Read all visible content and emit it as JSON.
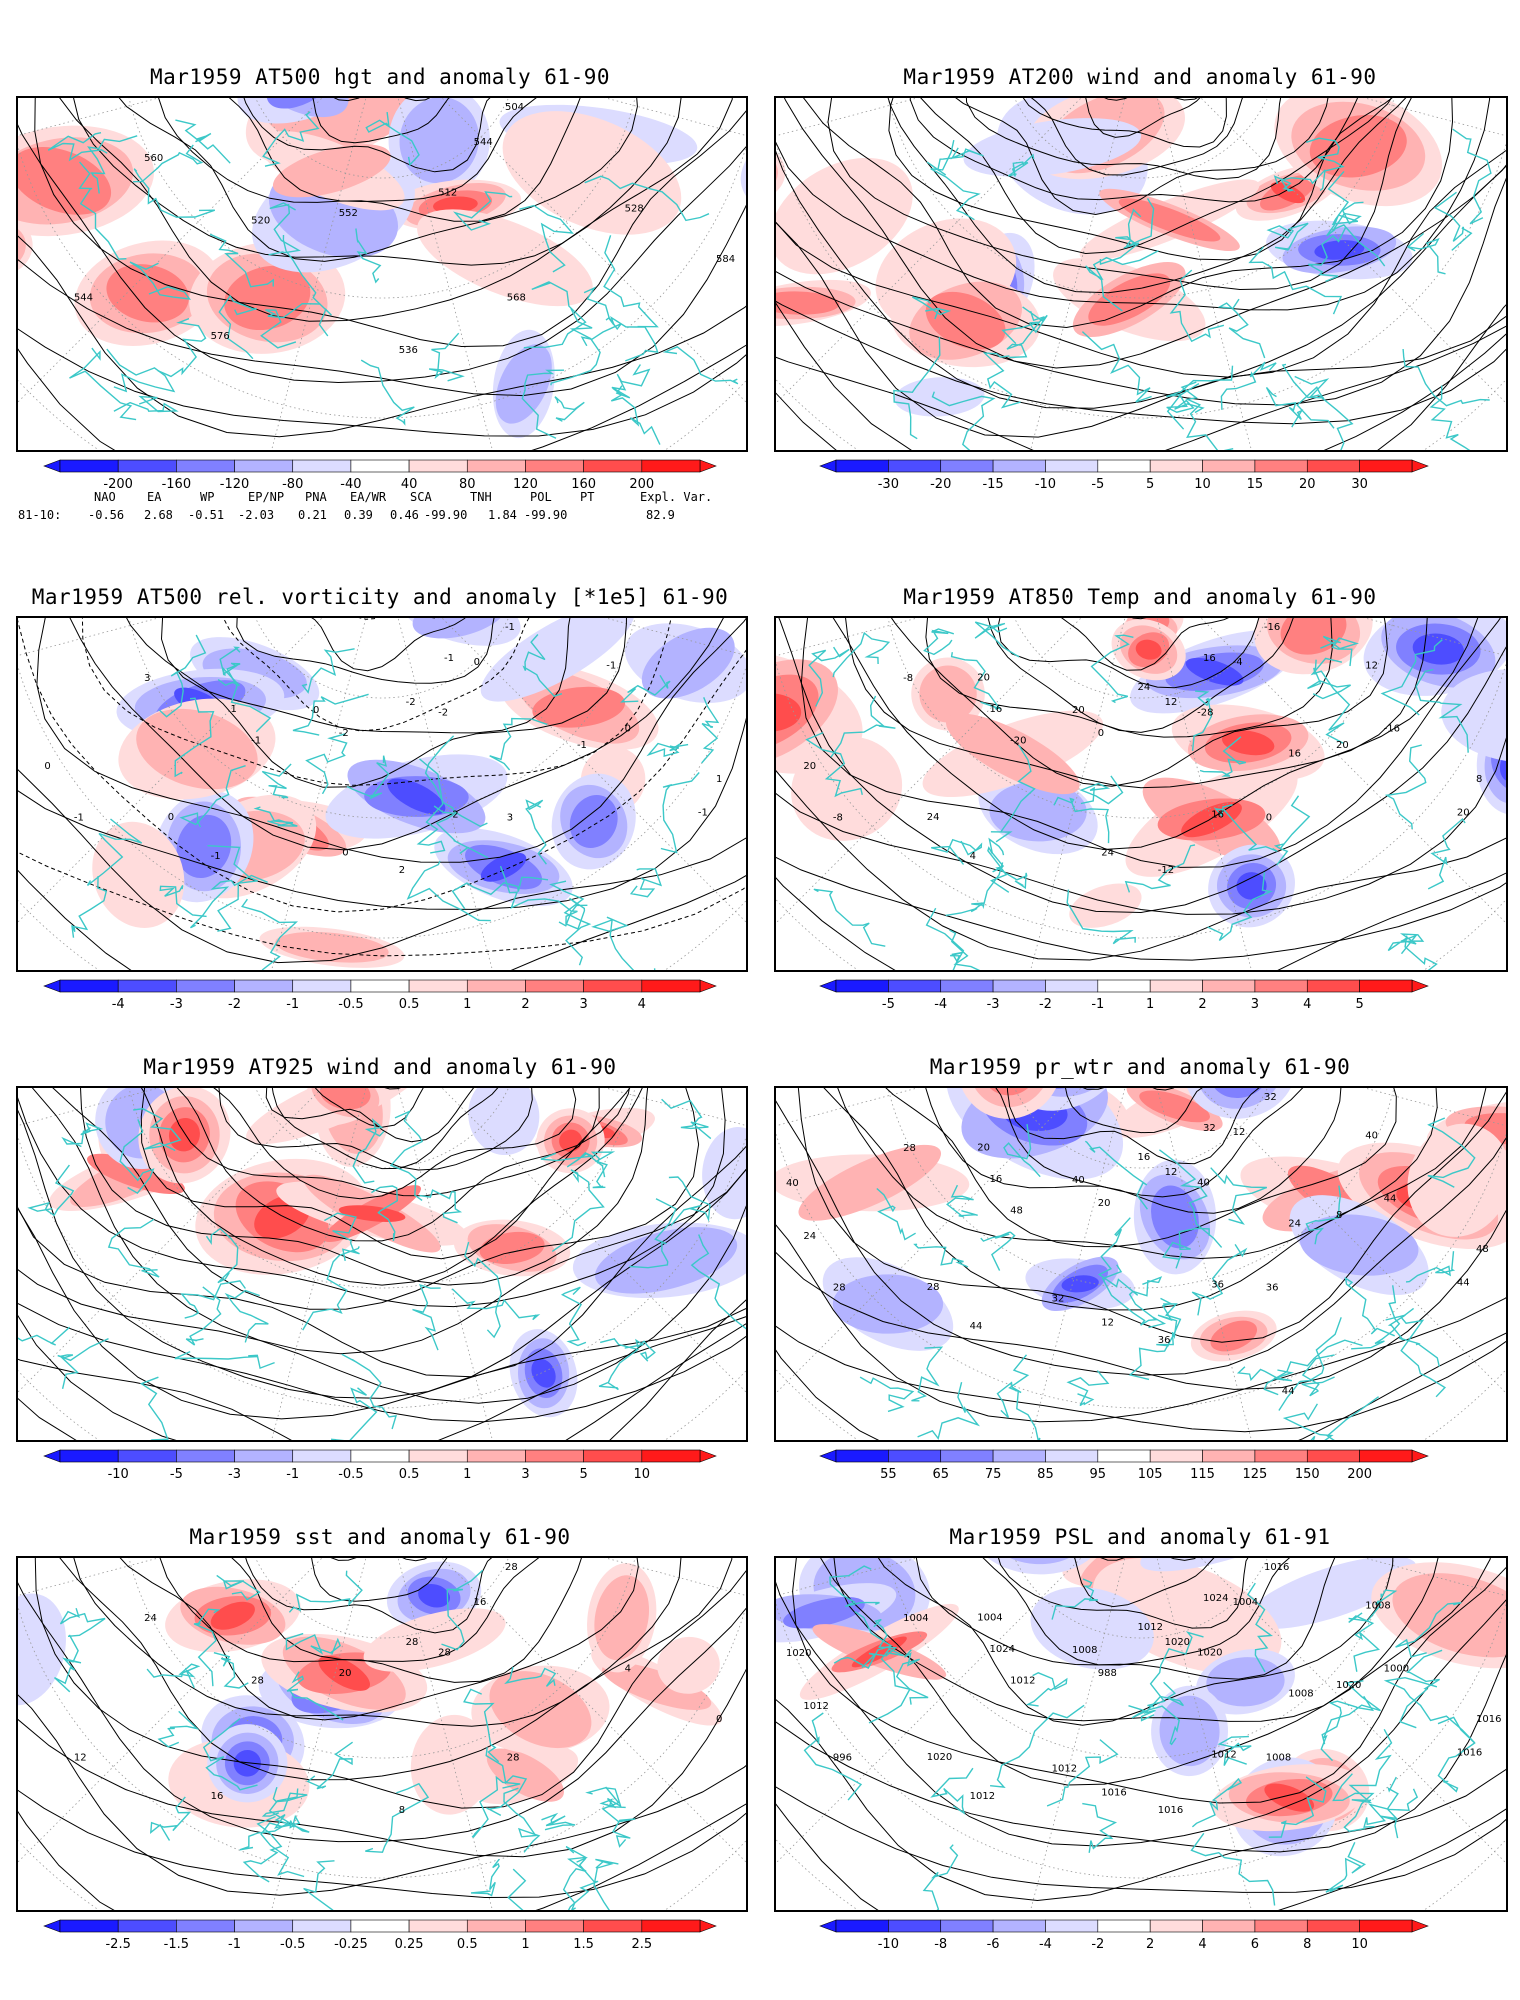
{
  "panels": [
    {
      "title": "Mar1959 AT500 hgt and anomaly 61-90",
      "colorbar": [
        "-200",
        "-160",
        "-120",
        "-80",
        "-40",
        "40",
        "80",
        "120",
        "160",
        "200"
      ],
      "contour_labels": [
        "504",
        "512",
        "520",
        "528",
        "536",
        "544",
        "544",
        "552",
        "560",
        "568",
        "576",
        "584"
      ]
    },
    {
      "title": "Mar1959 AT200 wind and anomaly 61-90",
      "colorbar": [
        "-30",
        "-20",
        "-15",
        "-10",
        "-5",
        "5",
        "10",
        "15",
        "20",
        "30"
      ],
      "contour_labels": []
    },
    {
      "title": "Mar1959 AT500 rel. vorticity and anomaly [*1e5] 61-90",
      "colorbar": [
        "-4",
        "-3",
        "-2",
        "-1",
        "-0.5",
        "0.5",
        "1",
        "2",
        "3",
        "4"
      ],
      "contour_labels": [
        "-1",
        "-2",
        "-1",
        "0",
        "2",
        "-1",
        "0",
        "-2",
        "3",
        "3",
        "-1",
        "1",
        "-2",
        "1",
        "-1",
        "0",
        "0",
        "-1",
        "0",
        "-1",
        "2",
        "0",
        "-1"
      ]
    },
    {
      "title": "Mar1959 AT850 Temp and anomaly 61-90",
      "colorbar": [
        "-5",
        "-4",
        "-3",
        "-2",
        "-1",
        "1",
        "2",
        "3",
        "4",
        "5"
      ],
      "contour_labels": [
        "-16",
        "-28",
        "-20",
        "-16",
        "-12",
        "-8",
        "-4",
        "0",
        "-8",
        "0",
        "4",
        "8",
        "12",
        "16",
        "20",
        "24",
        "20",
        "16",
        "20",
        "12",
        "16",
        "24",
        "20",
        "24",
        "20",
        "16"
      ]
    },
    {
      "title": "Mar1959 AT925 wind and anomaly 61-90",
      "colorbar": [
        "-10",
        "-5",
        "-3",
        "-1",
        "-0.5",
        "0.5",
        "1",
        "3",
        "5",
        "10"
      ],
      "contour_labels": []
    },
    {
      "title": "Mar1959 pr_wtr and anomaly 61-90",
      "colorbar": [
        "55",
        "65",
        "75",
        "85",
        "95",
        "105",
        "115",
        "125",
        "150",
        "200"
      ],
      "contour_labels": [
        "32",
        "40",
        "48",
        "44",
        "36",
        "28",
        "12",
        "20",
        "28",
        "36",
        "44",
        "48",
        "12",
        "16",
        "8",
        "12",
        "24",
        "32",
        "40",
        "40",
        "36",
        "28",
        "44",
        "16",
        "20",
        "24",
        "32",
        "40",
        "44"
      ]
    },
    {
      "title": "Mar1959 sst and anomaly 61-90",
      "colorbar": [
        "-2.5",
        "-1.5",
        "-1",
        "-0.5",
        "-0.25",
        "0.25",
        "0.5",
        "1",
        "1.5",
        "2.5"
      ],
      "contour_labels": [
        "28",
        "28",
        "28",
        "4",
        "8",
        "12",
        "16",
        "20",
        "24",
        "28",
        "16",
        "0",
        "28"
      ]
    },
    {
      "title": "Mar1959 PSL and anomaly 61-91",
      "colorbar": [
        "-10",
        "-8",
        "-6",
        "-4",
        "-2",
        "2",
        "4",
        "6",
        "8",
        "10"
      ],
      "contour_labels": [
        "1016",
        "1020",
        "1012",
        "1000",
        "1016",
        "996",
        "1004",
        "988",
        "1004",
        "1008",
        "1012",
        "1016",
        "1020",
        "1024",
        "1020",
        "1016",
        "1012",
        "1024",
        "1008",
        "1008",
        "1012",
        "1020",
        "1016",
        "1012",
        "1004",
        "1008",
        "1012",
        "1020"
      ]
    }
  ],
  "indices": {
    "headers": [
      "NAO",
      "EA",
      "WP",
      "EP/NP",
      "PNA",
      "EA/WR",
      "SCA",
      "TNH",
      "POL",
      "PT",
      "Expl. Var."
    ],
    "row_label": "81-10:",
    "values": [
      "-0.56",
      "2.68",
      "-0.51",
      "-2.03",
      "0.21",
      "0.39",
      "0.46",
      "-99.90",
      "1.84",
      "-99.90",
      "82.9"
    ]
  },
  "colors": {
    "coast": "#3cc8c8",
    "neg": [
      "#1a1aff",
      "#4d4dff",
      "#8080ff",
      "#b3b3ff",
      "#dcdcff"
    ],
    "pos": [
      "#ffdcdc",
      "#ffb3b3",
      "#ff8080",
      "#ff4d4d",
      "#ff1a1a"
    ]
  }
}
